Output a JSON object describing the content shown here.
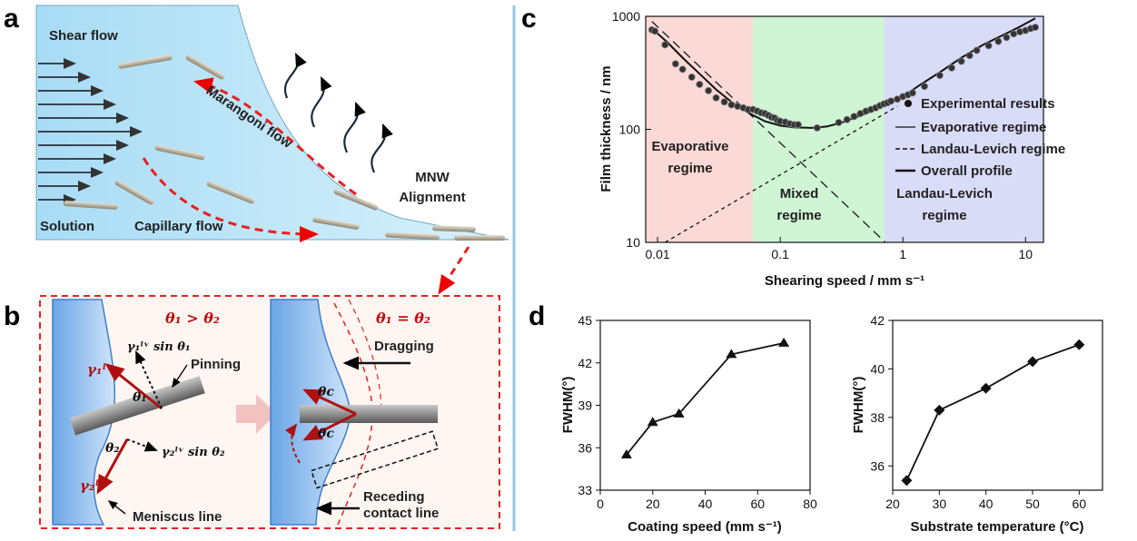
{
  "panel_a": {
    "letter": "a",
    "shear_flow": "Shear flow",
    "marangoni_flow": "Marangoni flow",
    "solution": "Solution",
    "capillary_flow": "Capillary flow",
    "mnw": "MNW",
    "alignment": "Alignment"
  },
  "panel_b": {
    "letter": "b",
    "left_condition": "θ₁ > θ₂",
    "right_condition": "θ₁ = θ₂",
    "gamma1": "γ₁ˡᵛ",
    "gamma1_sin": "γ₁ˡᵛ sin θ₁",
    "gamma2": "γ₂ˡᵛ",
    "gamma2_sin": "γ₂ˡᵛ sin θ₂",
    "theta1": "θ₁",
    "theta2": "θ₂",
    "theta_c_top": "θc",
    "theta_c_bottom": "θc",
    "pinning": "Pinning",
    "meniscus_line": "Meniscus line",
    "dragging": "Dragging",
    "receding_1": "Receding",
    "receding_2": "contact line"
  },
  "panel_c": {
    "letter": "c",
    "regimes": [
      "Evaporative",
      "regime",
      "Mixed",
      "regime",
      "Landau-Levich",
      "regime"
    ],
    "legend": [
      "Experimental results",
      "Evaporative regime",
      "Landau-Levich regime",
      "Overall profile"
    ],
    "colors": {
      "evaporative": "#fbd9d6",
      "mixed": "#cff5d4",
      "landau": "#d9dcf7"
    }
  },
  "panel_d": {
    "letter": "d"
  },
  "chart_data": [
    {
      "type": "scatter",
      "xlabel": "Shearing speed / mm s⁻¹",
      "ylabel": "Film thickness / nm",
      "xscale": "log",
      "yscale": "log",
      "xlim": [
        0.008,
        14
      ],
      "ylim": [
        10,
        1000
      ],
      "xticks": [
        0.01,
        0.1,
        1,
        10
      ],
      "xtick_labels": [
        "0.01",
        "0.1",
        "1",
        "10"
      ],
      "yticks": [
        10,
        100,
        1000
      ],
      "ytick_labels": [
        "10",
        "100",
        "1000"
      ],
      "regime_bounds": [
        0.06,
        0.7
      ],
      "series": [
        {
          "name": "Experimental results",
          "x": [
            0.009,
            0.0095,
            0.0115,
            0.014,
            0.016,
            0.019,
            0.022,
            0.026,
            0.03,
            0.035,
            0.04,
            0.045,
            0.05,
            0.055,
            0.06,
            0.065,
            0.07,
            0.075,
            0.08,
            0.085,
            0.09,
            0.095,
            0.1,
            0.11,
            0.12,
            0.13,
            0.14,
            0.2,
            0.3,
            0.35,
            0.4,
            0.45,
            0.5,
            0.55,
            0.6,
            0.65,
            0.7,
            0.75,
            0.8,
            0.9,
            1.0,
            1.1,
            1.2,
            1.5,
            2,
            2.5,
            3,
            3.5,
            4,
            5,
            6,
            7,
            8,
            9,
            10,
            11,
            12
          ],
          "y": [
            760,
            740,
            560,
            380,
            340,
            290,
            250,
            220,
            190,
            175,
            165,
            160,
            155,
            150,
            150,
            145,
            140,
            138,
            133,
            128,
            126,
            120,
            118,
            116,
            112,
            110,
            110,
            103,
            115,
            122,
            130,
            138,
            145,
            150,
            155,
            162,
            168,
            172,
            178,
            185,
            195,
            202,
            210,
            240,
            300,
            350,
            400,
            450,
            500,
            550,
            600,
            650,
            700,
            730,
            750,
            780,
            800
          ]
        },
        {
          "name": "Evaporative regime",
          "x": [
            0.009,
            0.72
          ],
          "y": [
            900,
            10
          ]
        },
        {
          "name": "Landau-Levich regime",
          "x": [
            0.0115,
            0.9
          ],
          "y": [
            10,
            160
          ]
        },
        {
          "name": "Overall profile",
          "x": [
            0.009,
            0.012,
            0.016,
            0.022,
            0.03,
            0.04,
            0.055,
            0.075,
            0.1,
            0.13,
            0.18,
            0.24,
            0.32,
            0.45,
            0.6,
            0.8,
            1.0,
            1.4,
            2,
            3,
            4.5,
            6.5,
            9,
            12
          ],
          "y": [
            780,
            590,
            430,
            310,
            225,
            175,
            140,
            118,
            108,
            104,
            103,
            106,
            115,
            132,
            150,
            172,
            195,
            250,
            320,
            430,
            560,
            680,
            810,
            960
          ]
        }
      ]
    },
    {
      "type": "line",
      "xlabel": "Coating speed (mm s⁻¹)",
      "ylabel": "FWHM(°)",
      "x": [
        10,
        20,
        30,
        50,
        70
      ],
      "y": [
        35.5,
        37.8,
        38.4,
        42.6,
        43.4
      ],
      "xlim": [
        0,
        80
      ],
      "ylim": [
        33,
        45
      ],
      "xticks": [
        0,
        20,
        40,
        60,
        80
      ],
      "xtick_labels": [
        "0",
        "20",
        "40",
        "60",
        "80"
      ],
      "yticks": [
        33,
        36,
        39,
        42,
        45
      ],
      "ytick_labels": [
        "33",
        "36",
        "39",
        "42",
        "45"
      ],
      "marker": "triangle"
    },
    {
      "type": "line",
      "xlabel": "Substrate temperature (°C)",
      "ylabel": "FWHM(°)",
      "x": [
        23,
        30,
        40,
        50,
        60
      ],
      "y": [
        35.4,
        38.3,
        39.2,
        40.3,
        41.0
      ],
      "xlim": [
        20,
        65
      ],
      "ylim": [
        35,
        42
      ],
      "xticks": [
        20,
        30,
        40,
        50,
        60
      ],
      "xtick_labels": [
        "20",
        "30",
        "40",
        "50",
        "60"
      ],
      "yticks": [
        36,
        38,
        40,
        42
      ],
      "ytick_labels": [
        "36",
        "38",
        "40",
        "42"
      ],
      "marker": "diamond"
    }
  ]
}
